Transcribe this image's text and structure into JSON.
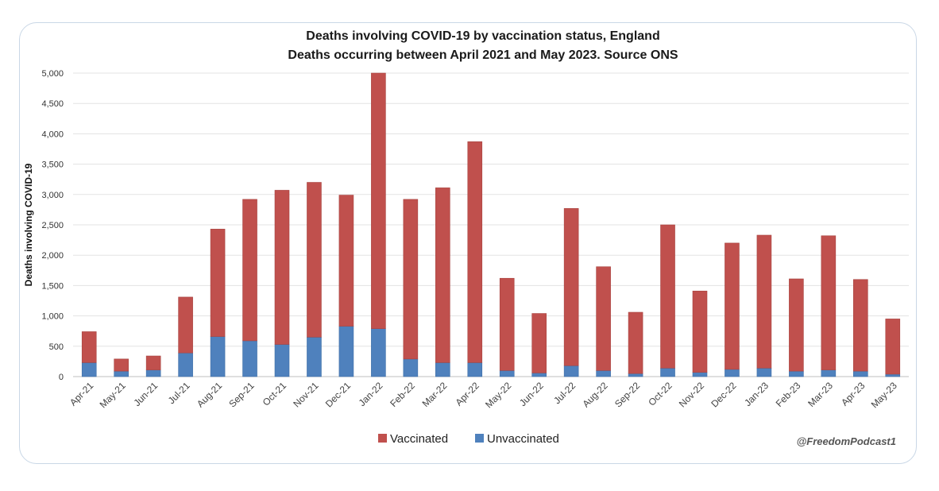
{
  "chart_data": {
    "type": "bar",
    "stacked": true,
    "title": "Deaths involving COVID-19 by vaccination status, England",
    "subtitle": "Deaths occurring between April 2021 and May 2023. Source ONS",
    "xlabel": "",
    "ylabel": "Deaths involving COVID-19",
    "ylim": [
      0,
      5000
    ],
    "yticks": [
      0,
      500,
      1000,
      1500,
      2000,
      2500,
      3000,
      3500,
      4000,
      4500,
      5000
    ],
    "ytick_labels": [
      "0",
      "500",
      "1,000",
      "1,500",
      "2,000",
      "2,500",
      "3,000",
      "3,500",
      "4,000",
      "4,500",
      "5,000"
    ],
    "grid": true,
    "legend_position": "bottom",
    "categories": [
      "Apr-21",
      "May-21",
      "Jun-21",
      "Jul-21",
      "Aug-21",
      "Sep-21",
      "Oct-21",
      "Nov-21",
      "Dec-21",
      "Jan-22",
      "Feb-22",
      "Mar-22",
      "Apr-22",
      "May-22",
      "Jun-22",
      "Jul-22",
      "Aug-22",
      "Sep-22",
      "Oct-22",
      "Nov-22",
      "Dec-22",
      "Jan-23",
      "Feb-23",
      "Mar-23",
      "Apr-23",
      "May-23"
    ],
    "series": [
      {
        "name": "Unvaccinated",
        "color": "#4f81bd",
        "values": [
          230,
          90,
          110,
          390,
          660,
          590,
          530,
          650,
          830,
          790,
          290,
          230,
          230,
          100,
          60,
          180,
          100,
          50,
          140,
          70,
          120,
          140,
          90,
          110,
          90,
          40
        ]
      },
      {
        "name": "Vaccinated",
        "color": "#c0504d",
        "values": [
          510,
          200,
          230,
          920,
          1770,
          2330,
          2540,
          2550,
          2160,
          4210,
          2630,
          2880,
          3640,
          1520,
          980,
          2590,
          1710,
          1010,
          2360,
          1340,
          2080,
          2190,
          1520,
          2210,
          1510,
          910
        ]
      }
    ],
    "legend": [
      "Vaccinated",
      "Unvaccinated"
    ]
  },
  "watermark": "@FreedomPodcast1"
}
